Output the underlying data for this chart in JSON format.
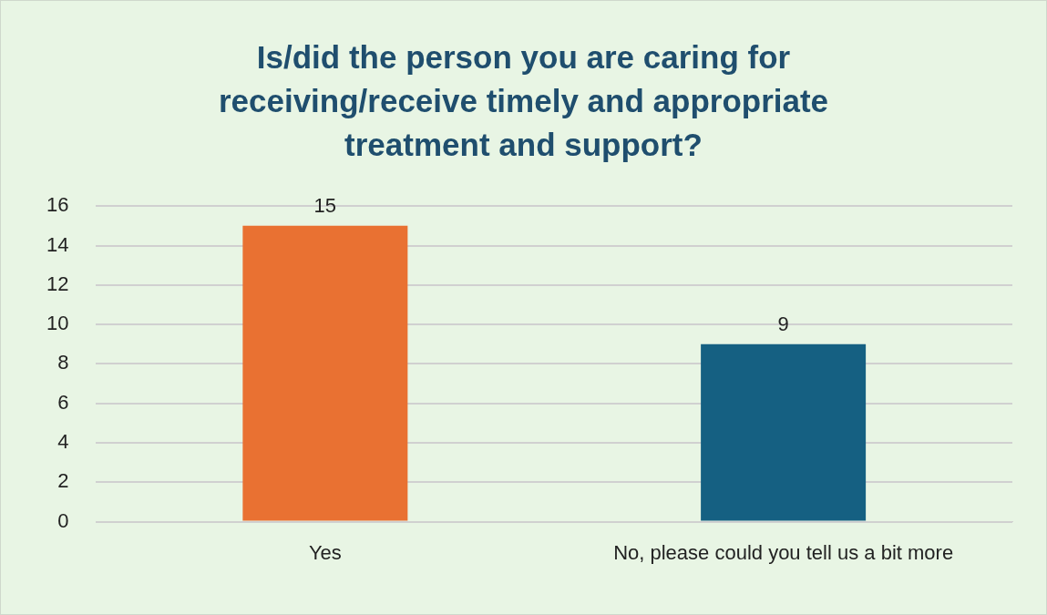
{
  "chart_data": {
    "type": "bar",
    "title": "Is/did the person you are caring for receiving/receive timely and appropriate treatment and support?",
    "categories": [
      "Yes",
      "No, please could you tell us a bit more"
    ],
    "values": [
      15,
      9
    ],
    "colors": [
      "#e97132",
      "#156082"
    ],
    "ylim": [
      0,
      16
    ],
    "yticks": [
      0,
      2,
      4,
      6,
      8,
      10,
      12,
      14,
      16
    ],
    "grid": "y",
    "legend": false,
    "data_labels": true
  }
}
